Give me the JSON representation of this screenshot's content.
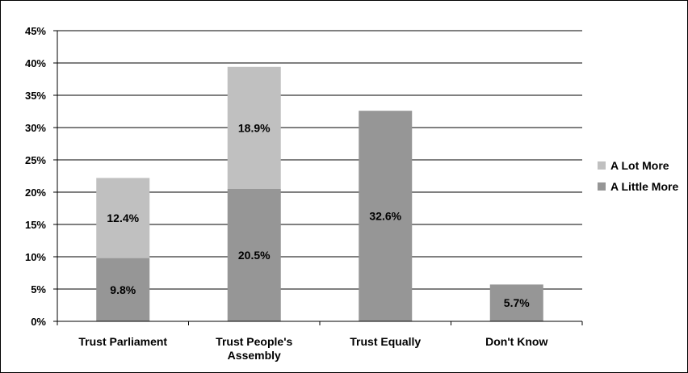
{
  "chart_data": {
    "type": "bar",
    "stacked": true,
    "title": "",
    "xlabel": "",
    "ylabel": "",
    "ylim": [
      0,
      45
    ],
    "ytick_labels": [
      "0%",
      "5%",
      "10%",
      "15%",
      "20%",
      "25%",
      "30%",
      "35%",
      "40%",
      "45%"
    ],
    "grid": true,
    "legend_position": "right",
    "categories": [
      "Trust Parliament",
      "Trust People's Assembly",
      "Trust Equally",
      "Don't Know"
    ],
    "category_lines": [
      [
        "Trust Parliament"
      ],
      [
        "Trust People's",
        "Assembly"
      ],
      [
        "Trust Equally"
      ],
      [
        "Don't Know"
      ]
    ],
    "series": [
      {
        "name": "A Little More",
        "values": [
          9.8,
          20.5,
          32.6,
          5.7
        ],
        "labels": [
          "9.8%",
          "20.5%",
          "32.6%",
          "5.7%"
        ],
        "color": "#969696"
      },
      {
        "name": "A Lot More",
        "values": [
          12.4,
          18.9,
          null,
          null
        ],
        "labels": [
          "12.4%",
          "18.9%",
          "",
          ""
        ],
        "color": "#c0c0c0"
      }
    ],
    "legend_order": [
      "A Lot More",
      "A Little More"
    ]
  }
}
